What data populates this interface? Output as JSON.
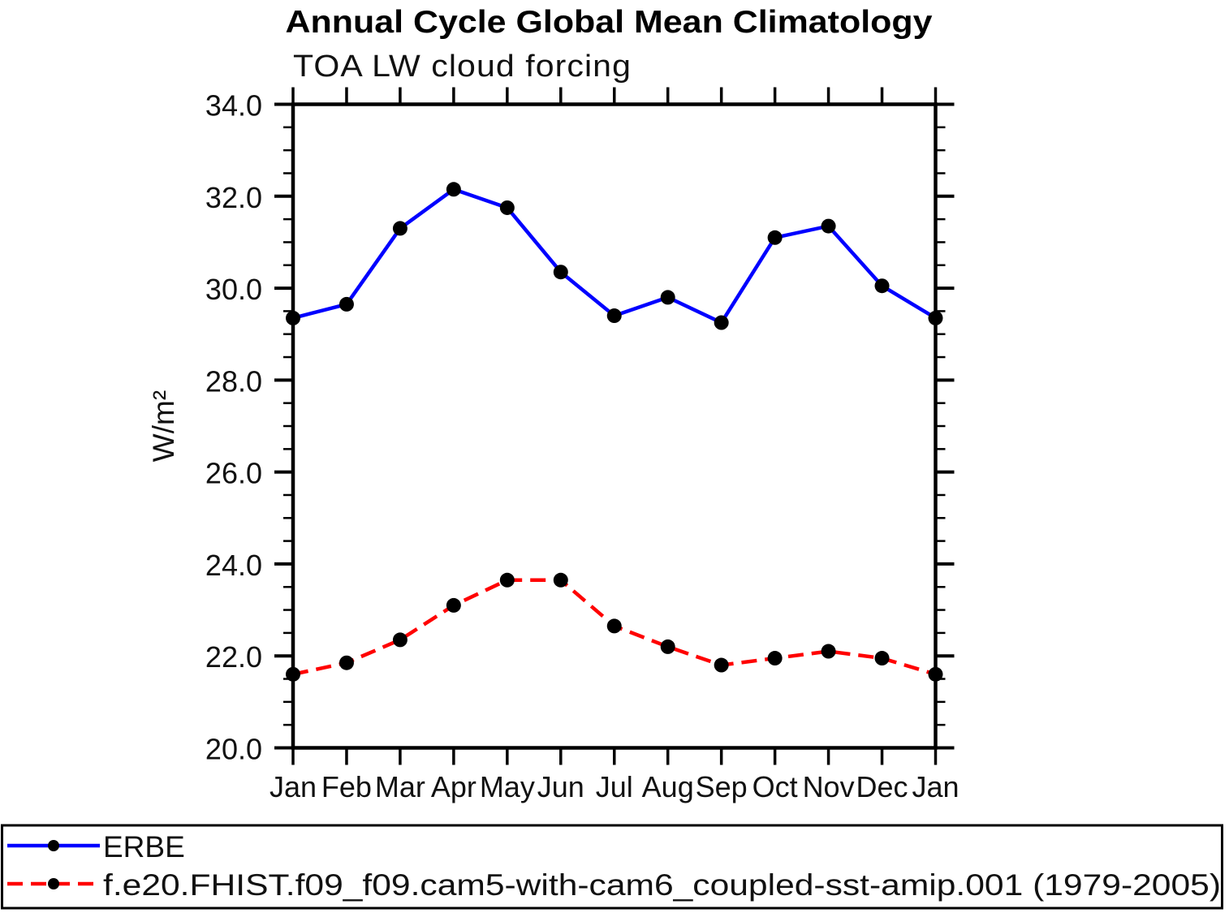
{
  "header": {
    "title": "Annual Cycle Global Mean Climatology"
  },
  "chart_data": {
    "type": "line",
    "title": "Annual Cycle Global Mean Climatology",
    "subtitle": "TOA LW cloud forcing",
    "ylabel": "W/m²",
    "x_categories": [
      "Jan",
      "Feb",
      "Mar",
      "Apr",
      "May",
      "Jun",
      "Jul",
      "Aug",
      "Sep",
      "Oct",
      "Nov",
      "Dec",
      "Jan"
    ],
    "ylim": [
      20.0,
      34.0
    ],
    "yticks": [
      "20.0",
      "22.0",
      "24.0",
      "26.0",
      "28.0",
      "30.0",
      "32.0",
      "34.0"
    ],
    "ytick_minor_step": 0.5,
    "grid": false,
    "legend_position": "bottom-boxed",
    "frame_color": "#000000",
    "series": [
      {
        "name": "ERBE",
        "color": "#0000ff",
        "line_style": "solid",
        "marker": "filled-circle",
        "marker_color": "#000000",
        "values": [
          29.35,
          29.65,
          31.3,
          32.15,
          31.75,
          30.35,
          29.4,
          29.8,
          29.25,
          31.1,
          31.35,
          30.05,
          29.35
        ]
      },
      {
        "name": "f.e20.FHIST.f09_f09.cam5-with-cam6_coupled-sst-amip.001 (1979-2005)",
        "color": "#ff0000",
        "line_style": "dashed",
        "marker": "filled-circle",
        "marker_color": "#000000",
        "values": [
          21.6,
          21.85,
          22.35,
          23.1,
          23.65,
          23.65,
          22.65,
          22.2,
          21.8,
          21.95,
          22.1,
          21.95,
          21.6
        ]
      }
    ]
  }
}
